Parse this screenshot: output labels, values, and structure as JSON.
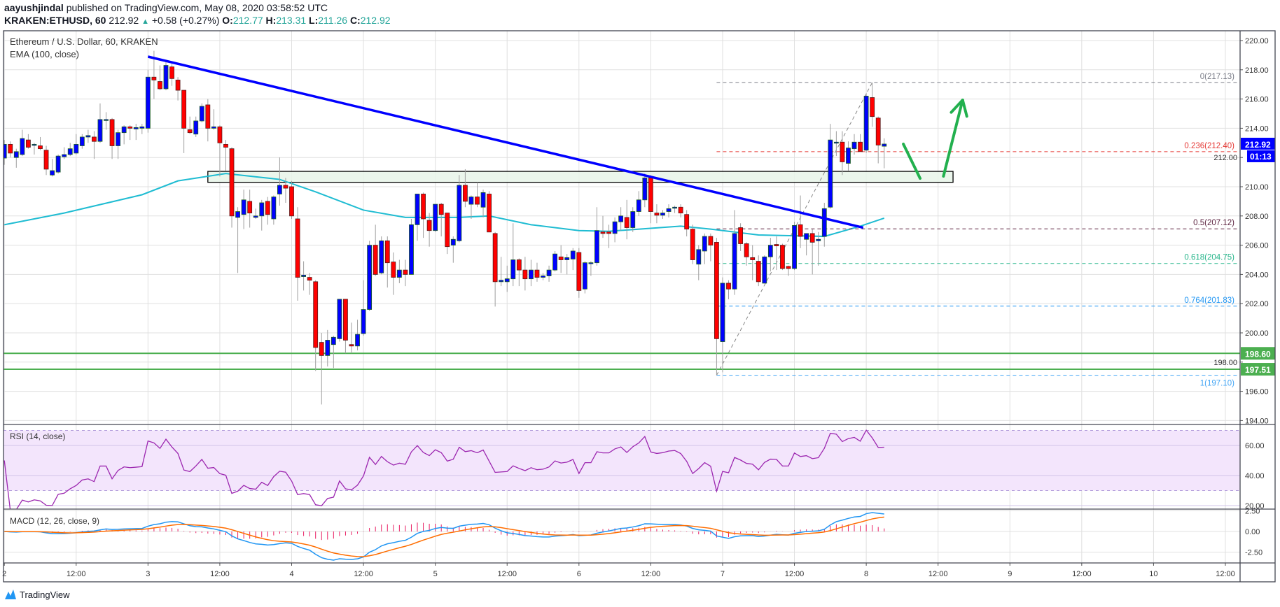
{
  "header": {
    "author": "aayushjindal",
    "published": "published on TradingView.com, May 08, 2020 03:58:52 UTC",
    "symbol": "KRAKEN:ETHUSD, 60",
    "last": "212.92",
    "change": "+0.58 (+0.27%)",
    "o_label": "O:",
    "o": "212.77",
    "h_label": "H:",
    "h": "213.31",
    "l_label": "L:",
    "l": "211.26",
    "c_label": "C:",
    "c": "212.92"
  },
  "footer": {
    "logo_text": "TradingView"
  },
  "chart_data": {
    "type": "candlestick",
    "title": "Ethereum / U.S. Dollar, 60, KRAKEN",
    "interval": "60",
    "colors": {
      "up": "#0000ff",
      "down": "#ff0000",
      "wick": "#9e9e9e",
      "ema": "#1fbcd2",
      "trendline": "#0000ff",
      "support": "#4caf50",
      "zone_fill": "#e8f5e9",
      "arrow": "#22b04e",
      "rsi": "#9c27b0",
      "rsi_band": "#f3e5fc",
      "macd": "#2196f3",
      "signal": "#ff6d00",
      "hist": "#e91e63"
    },
    "price_axis": {
      "ticks": [
        "220.00",
        "218.00",
        "216.00",
        "214.00",
        "212.00",
        "210.00",
        "208.00",
        "206.00",
        "204.00",
        "202.00",
        "200.00",
        "198.00",
        "196.00",
        "194.00"
      ],
      "range": [
        193.6,
        220.9
      ]
    },
    "time_axis": {
      "ticks": [
        "2",
        "12:00",
        "3",
        "12:00",
        "4",
        "12:00",
        "5",
        "12:00",
        "6",
        "12:00",
        "7",
        "12:00",
        "8",
        "12:00",
        "9",
        "12:00",
        "10",
        "12:00"
      ]
    },
    "ohlc_columns": [
      "open",
      "high",
      "low",
      "close"
    ],
    "candles": [
      [
        211.96,
        213.2,
        211.5,
        212.9
      ],
      [
        212.9,
        213.1,
        212.0,
        212.3
      ],
      [
        212.0,
        212.6,
        211.3,
        212.4
      ],
      [
        212.2,
        213.9,
        212.1,
        213.3
      ],
      [
        213.2,
        213.6,
        212.6,
        212.7
      ],
      [
        212.9,
        213.0,
        212.2,
        212.9
      ],
      [
        212.8,
        213.4,
        212.5,
        212.6
      ],
      [
        212.5,
        212.8,
        210.8,
        211.2
      ],
      [
        210.8,
        211.9,
        210.7,
        211.1
      ],
      [
        211.0,
        212.2,
        210.9,
        212.1
      ],
      [
        212.05,
        212.7,
        211.9,
        212.2
      ],
      [
        212.2,
        213.0,
        212.1,
        212.6
      ],
      [
        212.3,
        213.6,
        212.2,
        212.9
      ],
      [
        212.8,
        213.6,
        212.6,
        213.4
      ],
      [
        213.4,
        213.9,
        213.0,
        213.5
      ],
      [
        213.4,
        213.8,
        211.9,
        213.1
      ],
      [
        213.1,
        215.7,
        213.0,
        214.6
      ],
      [
        214.6,
        215.1,
        213.9,
        214.6
      ],
      [
        214.6,
        214.7,
        211.9,
        212.8
      ],
      [
        212.8,
        213.9,
        211.9,
        213.7
      ],
      [
        213.7,
        214.2,
        212.9,
        214.1
      ],
      [
        214.1,
        214.2,
        213.2,
        214.0
      ],
      [
        213.95,
        214.3,
        213.2,
        214.05
      ],
      [
        214.0,
        214.3,
        213.6,
        214.1
      ],
      [
        214.0,
        218.0,
        213.7,
        217.5
      ],
      [
        217.5,
        219.3,
        216.0,
        217.3
      ],
      [
        217.2,
        218.3,
        216.6,
        216.7
      ],
      [
        216.7,
        218.6,
        216.6,
        218.3
      ],
      [
        218.2,
        218.4,
        216.9,
        217.4
      ],
      [
        217.3,
        217.5,
        215.9,
        216.6
      ],
      [
        216.6,
        216.6,
        212.3,
        214.0
      ],
      [
        213.9,
        214.8,
        213.6,
        213.7
      ],
      [
        213.6,
        214.8,
        213.4,
        214.5
      ],
      [
        214.5,
        215.7,
        214.4,
        215.5
      ],
      [
        215.6,
        216.0,
        213.1,
        214.0
      ],
      [
        214.0,
        215.3,
        213.9,
        214.1
      ],
      [
        214.1,
        214.2,
        210.7,
        213.0
      ],
      [
        212.9,
        213.2,
        211.1,
        212.7
      ],
      [
        212.6,
        212.7,
        207.2,
        208.0
      ],
      [
        207.9,
        208.6,
        204.1,
        208.3
      ],
      [
        208.1,
        209.8,
        207.1,
        209.1
      ],
      [
        209.0,
        209.8,
        207.2,
        208.2
      ],
      [
        207.9,
        208.5,
        207.8,
        208.0
      ],
      [
        208.0,
        209.1,
        207.0,
        208.9
      ],
      [
        209.0,
        209.3,
        207.4,
        208.1
      ],
      [
        207.8,
        209.4,
        207.4,
        209.3
      ],
      [
        209.5,
        212.0,
        208.7,
        210.1
      ],
      [
        210.1,
        210.6,
        208.9,
        209.9
      ],
      [
        210.0,
        210.4,
        207.8,
        208.0
      ],
      [
        207.8,
        208.6,
        202.2,
        203.8
      ],
      [
        203.85,
        204.9,
        202.9,
        203.95
      ],
      [
        203.8,
        204.1,
        202.6,
        203.6
      ],
      [
        203.5,
        203.6,
        197.4,
        199.0
      ],
      [
        199.35,
        200.0,
        195.1,
        198.45
      ],
      [
        198.45,
        200.2,
        197.7,
        199.5
      ],
      [
        199.2,
        199.8,
        197.6,
        199.7
      ],
      [
        199.6,
        202.3,
        199.4,
        202.3
      ],
      [
        202.3,
        202.3,
        198.6,
        199.5
      ],
      [
        199.2,
        200.7,
        198.6,
        199.1
      ],
      [
        199.1,
        200.9,
        198.8,
        199.9
      ],
      [
        199.95,
        203.6,
        199.8,
        201.6
      ],
      [
        201.6,
        206.3,
        201.5,
        206.0
      ],
      [
        206.0,
        207.4,
        203.9,
        204.0
      ],
      [
        204.1,
        206.6,
        204.0,
        206.3
      ],
      [
        206.3,
        206.6,
        203.1,
        204.8
      ],
      [
        204.85,
        205.5,
        202.6,
        203.8
      ],
      [
        203.8,
        205.0,
        203.4,
        204.3
      ],
      [
        204.3,
        205.0,
        203.2,
        204.0
      ],
      [
        204.0,
        207.8,
        204.0,
        207.4
      ],
      [
        207.4,
        209.5,
        206.3,
        209.5
      ],
      [
        209.5,
        209.6,
        206.5,
        207.8
      ],
      [
        207.7,
        208.2,
        205.9,
        207.0
      ],
      [
        207.0,
        208.8,
        206.9,
        208.8
      ],
      [
        208.8,
        208.9,
        206.6,
        208.1
      ],
      [
        208.2,
        208.2,
        205.4,
        205.9
      ],
      [
        206.0,
        206.6,
        204.8,
        206.4
      ],
      [
        206.3,
        210.8,
        206.2,
        210.1
      ],
      [
        210.1,
        211.2,
        208.6,
        209.0
      ],
      [
        208.8,
        209.4,
        207.8,
        209.3
      ],
      [
        209.3,
        210.3,
        208.6,
        208.8
      ],
      [
        208.6,
        209.8,
        207.9,
        209.6
      ],
      [
        209.5,
        209.7,
        206.9,
        206.9
      ],
      [
        206.8,
        206.9,
        201.8,
        203.5
      ],
      [
        203.5,
        205.2,
        203.2,
        203.6
      ],
      [
        203.5,
        204.6,
        202.8,
        203.7
      ],
      [
        203.7,
        207.5,
        203.2,
        205.0
      ],
      [
        205.0,
        205.1,
        203.2,
        204.3
      ],
      [
        204.3,
        205.2,
        202.9,
        203.7
      ],
      [
        203.7,
        205.0,
        203.2,
        204.3
      ],
      [
        204.3,
        204.8,
        203.5,
        203.8
      ],
      [
        203.8,
        204.1,
        203.6,
        203.9
      ],
      [
        203.9,
        204.6,
        203.5,
        204.3
      ],
      [
        204.3,
        205.6,
        204.2,
        205.4
      ],
      [
        205.2,
        206.0,
        204.1,
        205.0
      ],
      [
        205.0,
        205.4,
        204.0,
        205.15
      ],
      [
        205.05,
        205.8,
        204.3,
        205.6
      ],
      [
        205.5,
        205.8,
        202.4,
        202.9
      ],
      [
        203.0,
        204.9,
        202.7,
        204.8
      ],
      [
        204.75,
        204.9,
        203.9,
        204.8
      ],
      [
        204.8,
        208.6,
        204.6,
        207.0
      ],
      [
        206.9,
        208.0,
        206.5,
        206.8
      ],
      [
        206.9,
        207.4,
        205.8,
        206.8
      ],
      [
        206.8,
        207.9,
        206.2,
        207.6
      ],
      [
        207.6,
        208.6,
        207.0,
        208.0
      ],
      [
        207.9,
        209.1,
        206.4,
        207.2
      ],
      [
        207.2,
        208.6,
        206.9,
        208.3
      ],
      [
        208.3,
        209.7,
        208.0,
        209.1
      ],
      [
        209.1,
        210.9,
        208.6,
        210.6
      ],
      [
        210.6,
        210.8,
        207.5,
        208.3
      ],
      [
        208.2,
        208.8,
        207.5,
        208.05
      ],
      [
        208.05,
        208.4,
        207.8,
        208.2
      ],
      [
        208.3,
        208.8,
        207.9,
        208.5
      ],
      [
        208.6,
        208.7,
        208.2,
        208.6
      ],
      [
        208.6,
        208.8,
        207.9,
        208.2
      ],
      [
        208.1,
        208.4,
        206.6,
        207.1
      ],
      [
        207.1,
        207.4,
        204.7,
        205.0
      ],
      [
        204.7,
        206.0,
        203.6,
        205.7
      ],
      [
        205.6,
        206.8,
        204.7,
        206.6
      ],
      [
        206.6,
        206.8,
        204.9,
        206.0
      ],
      [
        206.2,
        206.5,
        197.1,
        199.6
      ],
      [
        199.4,
        203.8,
        197.3,
        203.4
      ],
      [
        203.4,
        203.6,
        202.3,
        203.0
      ],
      [
        203.0,
        208.4,
        202.6,
        206.8
      ],
      [
        207.2,
        207.5,
        205.6,
        206.1
      ],
      [
        206.1,
        206.2,
        204.6,
        205.2
      ],
      [
        205.15,
        206.0,
        203.6,
        205.0
      ],
      [
        204.9,
        205.3,
        203.2,
        203.5
      ],
      [
        203.4,
        205.3,
        203.4,
        205.2
      ],
      [
        205.2,
        206.5,
        204.2,
        206.0
      ],
      [
        206.05,
        206.6,
        204.3,
        205.95
      ],
      [
        206.0,
        206.1,
        204.3,
        204.4
      ],
      [
        204.55,
        204.6,
        203.9,
        204.4
      ],
      [
        204.4,
        207.6,
        204.3,
        207.35
      ],
      [
        207.4,
        209.4,
        205.8,
        206.6
      ],
      [
        206.4,
        206.8,
        205.3,
        206.8
      ],
      [
        206.8,
        207.1,
        204.0,
        206.2
      ],
      [
        206.3,
        206.9,
        204.6,
        206.4
      ],
      [
        206.6,
        208.9,
        205.9,
        208.5
      ],
      [
        208.6,
        214.3,
        208.5,
        213.2
      ],
      [
        213.05,
        213.8,
        212.1,
        213.05
      ],
      [
        213.05,
        213.8,
        210.8,
        211.7
      ],
      [
        211.6,
        213.1,
        211.1,
        212.65
      ],
      [
        212.6,
        213.6,
        212.2,
        213.05
      ],
      [
        213.05,
        213.6,
        212.4,
        212.4
      ],
      [
        212.5,
        216.4,
        212.3,
        216.2
      ],
      [
        216.1,
        217.13,
        214.1,
        214.8
      ],
      [
        214.7,
        214.8,
        211.6,
        212.85
      ],
      [
        212.77,
        213.31,
        211.26,
        212.92
      ]
    ],
    "ema": {
      "label": "EMA (100, close)",
      "points": [
        {
          "time": "2 00:00",
          "price": 207.4
        },
        {
          "time": "2 10:00",
          "price": 208.2
        },
        {
          "time": "2 23:00",
          "price": 209.45
        },
        {
          "time": "3 05:00",
          "price": 210.4
        },
        {
          "time": "3 13:00",
          "price": 210.9
        },
        {
          "time": "3 22:00",
          "price": 210.5
        },
        {
          "time": "4 04:00",
          "price": 209.65
        },
        {
          "time": "4 12:00",
          "price": 208.4
        },
        {
          "time": "4 19:00",
          "price": 207.9
        },
        {
          "time": "5 04:00",
          "price": 207.9
        },
        {
          "time": "5 09:00",
          "price": 208.0
        },
        {
          "time": "5 16:00",
          "price": 207.4
        },
        {
          "time": "6 00:00",
          "price": 207.0
        },
        {
          "time": "6 05:00",
          "price": 206.95
        },
        {
          "time": "6 17:00",
          "price": 207.3
        },
        {
          "time": "6 22:00",
          "price": 207.1
        },
        {
          "time": "7 06:00",
          "price": 206.7
        },
        {
          "time": "7 17:00",
          "price": 206.6
        },
        {
          "time": "7 23:00",
          "price": 207.3
        },
        {
          "time": "8 03:00",
          "price": 207.85
        }
      ]
    },
    "trendline": {
      "from": {
        "time": "3 00:00",
        "price": 218.9
      },
      "to": {
        "time": "7 23:30",
        "price": 207.2
      }
    },
    "resistance_zone": {
      "from": "3 10:00",
      "to": "8 14:30",
      "low": 210.3,
      "high": 211.05
    },
    "support_lines": [
      {
        "price": 198.6,
        "label": "198.60"
      },
      {
        "price": 197.51,
        "label": "197.51"
      }
    ],
    "fib_retracement": {
      "start": {
        "time": "6 23:00",
        "price": 197.1
      },
      "end": {
        "time": "8 01:00",
        "price": 217.13
      },
      "levels": [
        {
          "label": "0(217.13)",
          "price": 217.13,
          "color": "#787b86"
        },
        {
          "label": "0.236(212.40)",
          "price": 212.4,
          "color": "#e53935"
        },
        {
          "label": "0.5(207.12)",
          "price": 207.12,
          "color": "#5d2441"
        },
        {
          "label": "0.618(204.75)",
          "price": 204.75,
          "color": "#26b58a"
        },
        {
          "label": "0.764(201.83)",
          "price": 201.83,
          "color": "#2196f3"
        },
        {
          "label": "1(197.10)",
          "price": 197.1,
          "color": "#42a5f5"
        }
      ]
    },
    "arrows": [
      {
        "from": {
          "time": "8 06:12",
          "price": 212.92
        },
        "to": {
          "time": "8 09:00",
          "price": 210.57
        },
        "head": false
      },
      {
        "from": {
          "time": "8 12:54",
          "price": 210.72
        },
        "to": {
          "time": "8 16:06",
          "price": 215.93
        },
        "head": true
      }
    ],
    "last_price": {
      "label": "212.92",
      "price": 212.92,
      "countdown": "01:13"
    },
    "rsi": {
      "label": "RSI (14, close)",
      "period": 14,
      "upper": 70,
      "lower": 30,
      "ticks": [
        "60.00",
        "40.00",
        "20.00"
      ]
    },
    "macd": {
      "label": "MACD (12, 26, close, 9)",
      "fast": 12,
      "slow": 26,
      "signal": 9,
      "ticks": [
        "2.50",
        "0.00",
        "-2.50"
      ]
    }
  }
}
